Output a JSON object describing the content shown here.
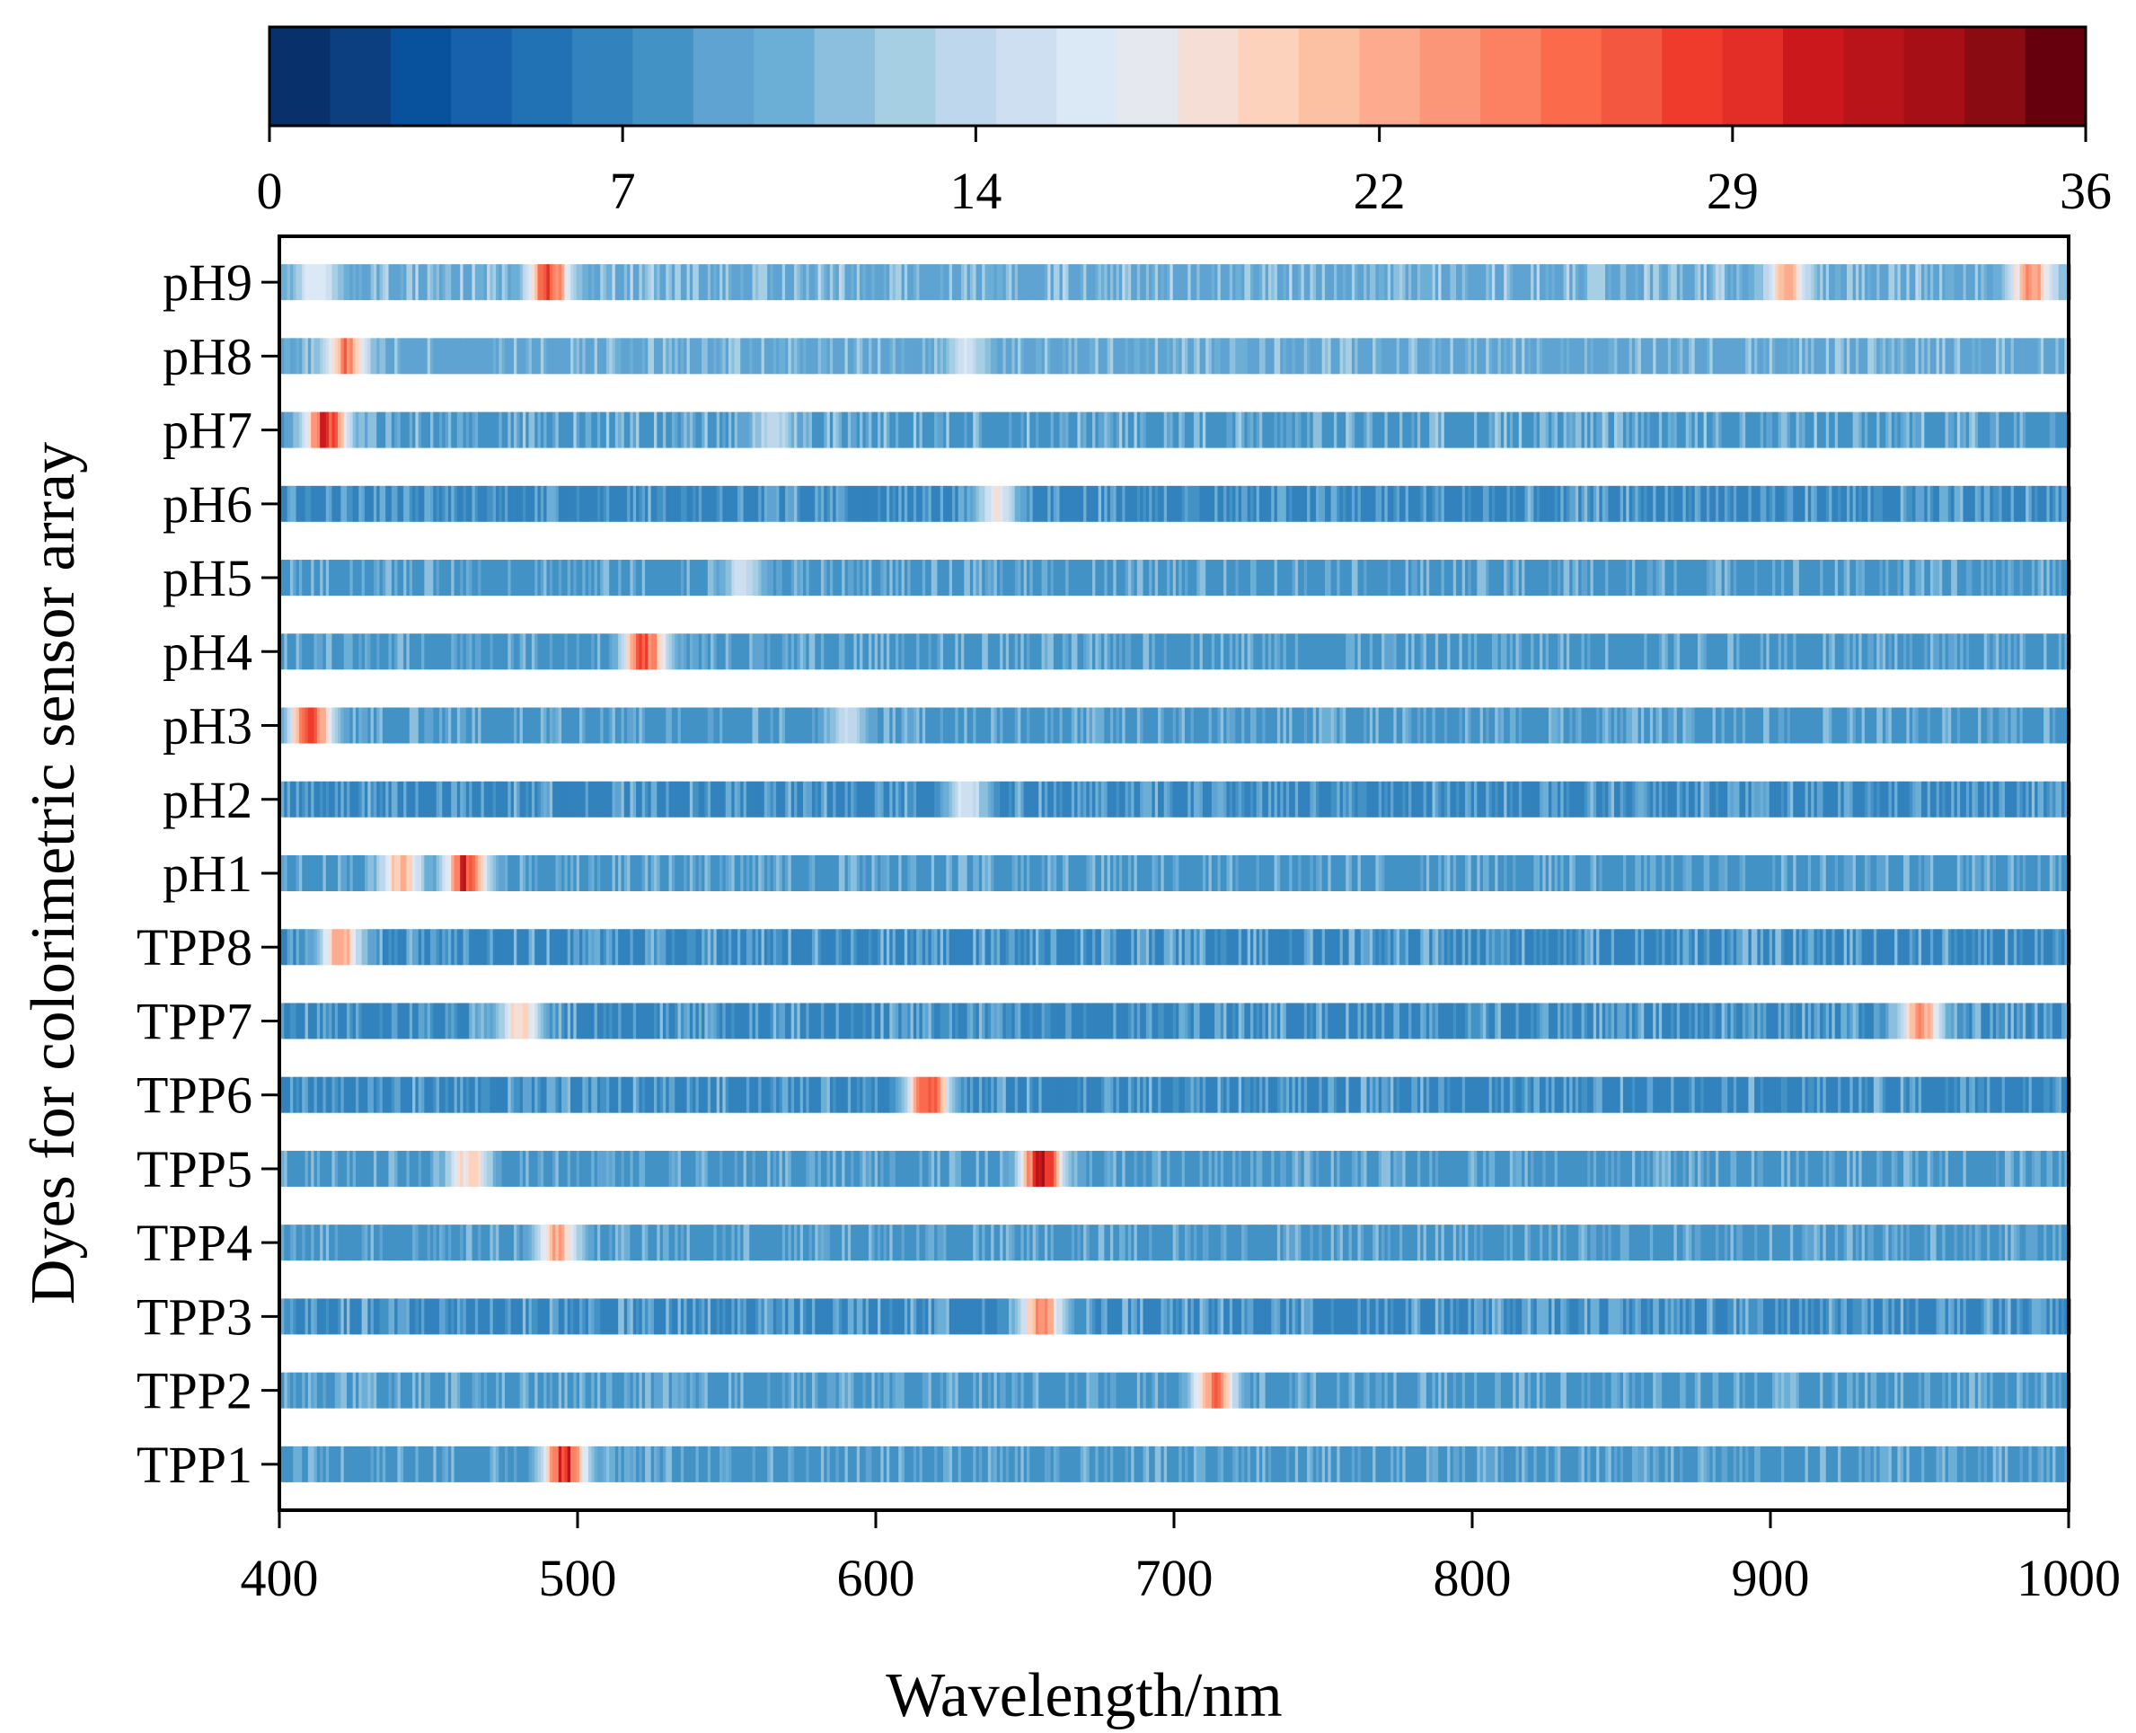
{
  "chart_data": {
    "type": "heatmap",
    "title": "",
    "xlabel": "Wavelength/nm",
    "ylabel": "Dyes for colorimetric sensor array",
    "xlim": [
      400,
      1000
    ],
    "x_ticks": [
      "400",
      "500",
      "600",
      "700",
      "800",
      "900",
      "1000"
    ],
    "colorbar": {
      "range": [
        0,
        36
      ],
      "ticks": [
        "0",
        "7",
        "14",
        "22",
        "29",
        "36"
      ],
      "colors": [
        "#08306b",
        "#0b3f7f",
        "#08519c",
        "#1660ac",
        "#2171b5",
        "#3182bd",
        "#4292c6",
        "#5ea3d1",
        "#6baed6",
        "#8cbfdd",
        "#a6cfe4",
        "#bfd7ec",
        "#cddff0",
        "#dbe8f5",
        "#e6e8f0",
        "#f5ded6",
        "#fcd2bd",
        "#fcc0a3",
        "#fcab8f",
        "#fc9679",
        "#fc8163",
        "#fb6a4a",
        "#f4573f",
        "#ef3b2c",
        "#e22e27",
        "#cb181d",
        "#b91419",
        "#a50f15",
        "#8a0b12",
        "#67000d"
      ]
    },
    "rows": [
      "pH9",
      "pH8",
      "pH7",
      "pH6",
      "pH5",
      "pH4",
      "pH3",
      "pH2",
      "pH1",
      "TPP8",
      "TPP7",
      "TPP6",
      "TPP5",
      "TPP4",
      "TPP3",
      "TPP2",
      "TPP1"
    ],
    "row_profiles": [
      {
        "row": "pH9",
        "baseline": 9.0,
        "peaks": [
          {
            "nm": 412,
            "value": 18
          },
          {
            "nm": 490,
            "value": 30
          },
          {
            "nm": 905,
            "value": 23
          },
          {
            "nm": 987,
            "value": 26
          }
        ]
      },
      {
        "row": "pH8",
        "baseline": 8.5,
        "peaks": [
          {
            "nm": 422,
            "value": 27
          },
          {
            "nm": 630,
            "value": 16
          }
        ]
      },
      {
        "row": "pH7",
        "baseline": 8.0,
        "peaks": [
          {
            "nm": 415,
            "value": 32
          },
          {
            "nm": 565,
            "value": 15
          }
        ]
      },
      {
        "row": "pH6",
        "baseline": 6.5,
        "peaks": [
          {
            "nm": 640,
            "value": 19
          }
        ]
      },
      {
        "row": "pH5",
        "baseline": 7.5,
        "peaks": [
          {
            "nm": 555,
            "value": 16
          }
        ]
      },
      {
        "row": "pH4",
        "baseline": 7.5,
        "peaks": [
          {
            "nm": 522,
            "value": 30
          }
        ]
      },
      {
        "row": "pH3",
        "baseline": 7.5,
        "peaks": [
          {
            "nm": 410,
            "value": 31
          },
          {
            "nm": 590,
            "value": 15
          }
        ]
      },
      {
        "row": "pH2",
        "baseline": 6.5,
        "peaks": [
          {
            "nm": 630,
            "value": 17
          }
        ]
      },
      {
        "row": "pH1",
        "baseline": 7.5,
        "peaks": [
          {
            "nm": 440,
            "value": 24
          },
          {
            "nm": 462,
            "value": 32
          }
        ]
      },
      {
        "row": "TPP8",
        "baseline": 7.0,
        "peaks": [
          {
            "nm": 420,
            "value": 24
          }
        ]
      },
      {
        "row": "TPP7",
        "baseline": 7.0,
        "peaks": [
          {
            "nm": 480,
            "value": 22
          },
          {
            "nm": 950,
            "value": 26
          }
        ]
      },
      {
        "row": "TPP6",
        "baseline": 6.5,
        "peaks": [
          {
            "nm": 617,
            "value": 31
          }
        ]
      },
      {
        "row": "TPP5",
        "baseline": 7.5,
        "peaks": [
          {
            "nm": 463,
            "value": 22
          },
          {
            "nm": 655,
            "value": 34
          }
        ]
      },
      {
        "row": "TPP4",
        "baseline": 7.5,
        "peaks": [
          {
            "nm": 493,
            "value": 24
          }
        ]
      },
      {
        "row": "TPP3",
        "baseline": 7.0,
        "peaks": [
          {
            "nm": 655,
            "value": 27
          }
        ]
      },
      {
        "row": "TPP2",
        "baseline": 7.5,
        "peaks": [
          {
            "nm": 713,
            "value": 28
          }
        ]
      },
      {
        "row": "TPP1",
        "baseline": 7.5,
        "peaks": [
          {
            "nm": 495,
            "value": 33
          }
        ]
      }
    ]
  }
}
